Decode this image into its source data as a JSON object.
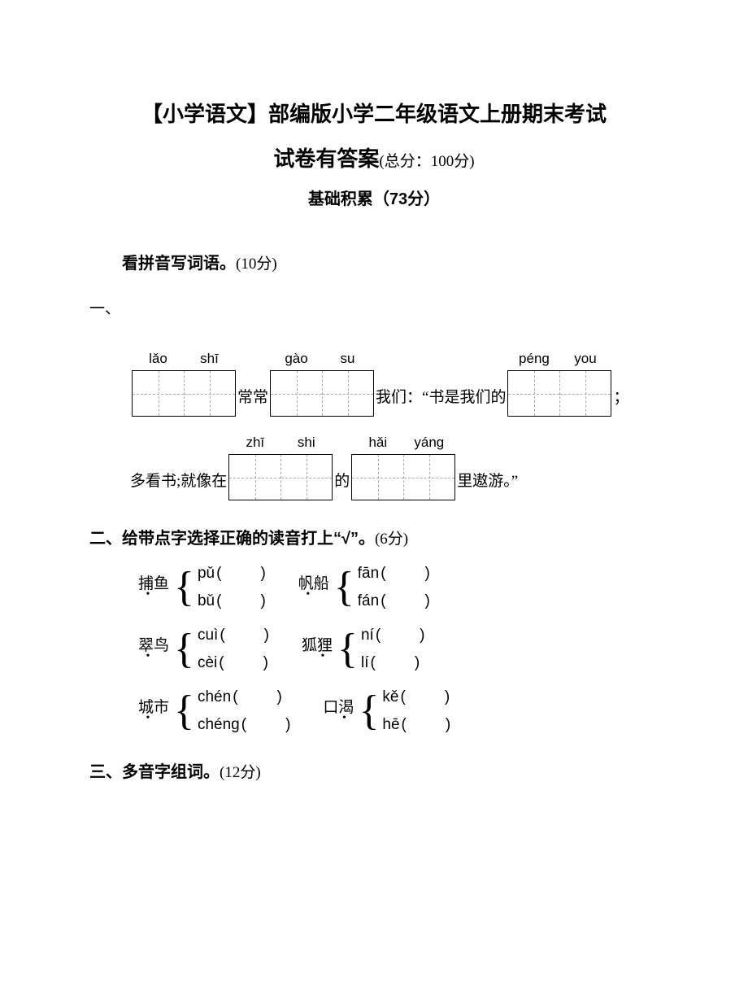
{
  "title_line1": "【小学语文】部编版小学二年级语文上册期末考试",
  "title_line2_bold": "试卷有答案",
  "title_line2_paren": "(总分：100分)",
  "subtitle": "基础积累（73分）",
  "q1": {
    "marker": "一、",
    "title_bold": "看拼音写词语。",
    "title_paren": "(10分)",
    "row1": {
      "box1": {
        "p1": "lǎo",
        "p2": "shī"
      },
      "t1": "常常",
      "box2": {
        "p1": "gào",
        "p2": "su"
      },
      "t2": "我们：“书是我们的",
      "box3": {
        "p1": "péng",
        "p2": "you"
      },
      "t3": "；"
    },
    "row2": {
      "t0": "多看书;就像在",
      "box1": {
        "p1": "zhī",
        "p2": "shi"
      },
      "t1": "的",
      "box2": {
        "p1": "hǎi",
        "p2": "yáng"
      },
      "t2": "里遨游。”"
    }
  },
  "q2": {
    "heading_bold": "二、给带点字选择正确的读音打上“√”。",
    "heading_paren": "(6分)",
    "items": [
      [
        {
          "label": "捕鱼",
          "dot_at": 0,
          "o1": "pǔ",
          "o2": "bǔ"
        },
        {
          "label": "帆船",
          "dot_at": 0,
          "o1": "fān",
          "o2": "fán"
        }
      ],
      [
        {
          "label": "翠鸟",
          "dot_at": 0,
          "o1": "cuì",
          "o2": "cèi"
        },
        {
          "label": "狐狸",
          "dot_at": 1,
          "o1": "ní",
          "o2": "lí"
        }
      ],
      [
        {
          "label": "城市",
          "dot_at": 0,
          "o1": "chén",
          "o2": "chéng"
        },
        {
          "label": "口渴",
          "dot_at": 1,
          "o1": "kě",
          "o2": "hē"
        }
      ]
    ]
  },
  "q3": {
    "heading_bold": "三、多音字组词。",
    "heading_paren": "(12分)"
  }
}
